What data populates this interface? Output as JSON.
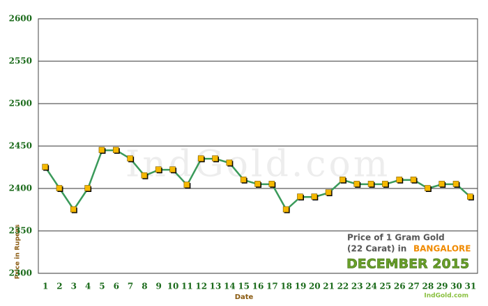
{
  "chart_data": {
    "type": "line",
    "categories": [
      "1",
      "2",
      "3",
      "4",
      "5",
      "6",
      "7",
      "8",
      "9",
      "10",
      "11",
      "12",
      "13",
      "14",
      "15",
      "16",
      "17",
      "18",
      "19",
      "20",
      "21",
      "22",
      "23",
      "24",
      "25",
      "26",
      "27",
      "28",
      "29",
      "30",
      "31"
    ],
    "series": [
      {
        "color": "#3a9a5a",
        "marker_color": "#f5b800",
        "values": [
          2425,
          2400,
          2375,
          2400,
          2445,
          2445,
          2435,
          2415,
          2422,
          2422,
          2404,
          2435,
          2435,
          2430,
          2410,
          2405,
          2405,
          2375,
          2390,
          2390,
          2395,
          2410,
          2405,
          2405,
          2405,
          2410,
          2410,
          2400,
          2405,
          2405,
          2390
        ]
      }
    ],
    "ylim": [
      2300,
      2600
    ],
    "yticks": [
      2300,
      2350,
      2400,
      2450,
      2500,
      2550,
      2600
    ],
    "grid": true,
    "x_label": "Date",
    "y_label": "Price in Rupees",
    "watermark": "IndGold.com",
    "annotation": {
      "line1": "Price of 1 Gram Gold",
      "line2": "(22 Carat) in",
      "city": "BANGALORE",
      "period": "DECEMBER 2015",
      "source": "IndGold.com"
    }
  }
}
